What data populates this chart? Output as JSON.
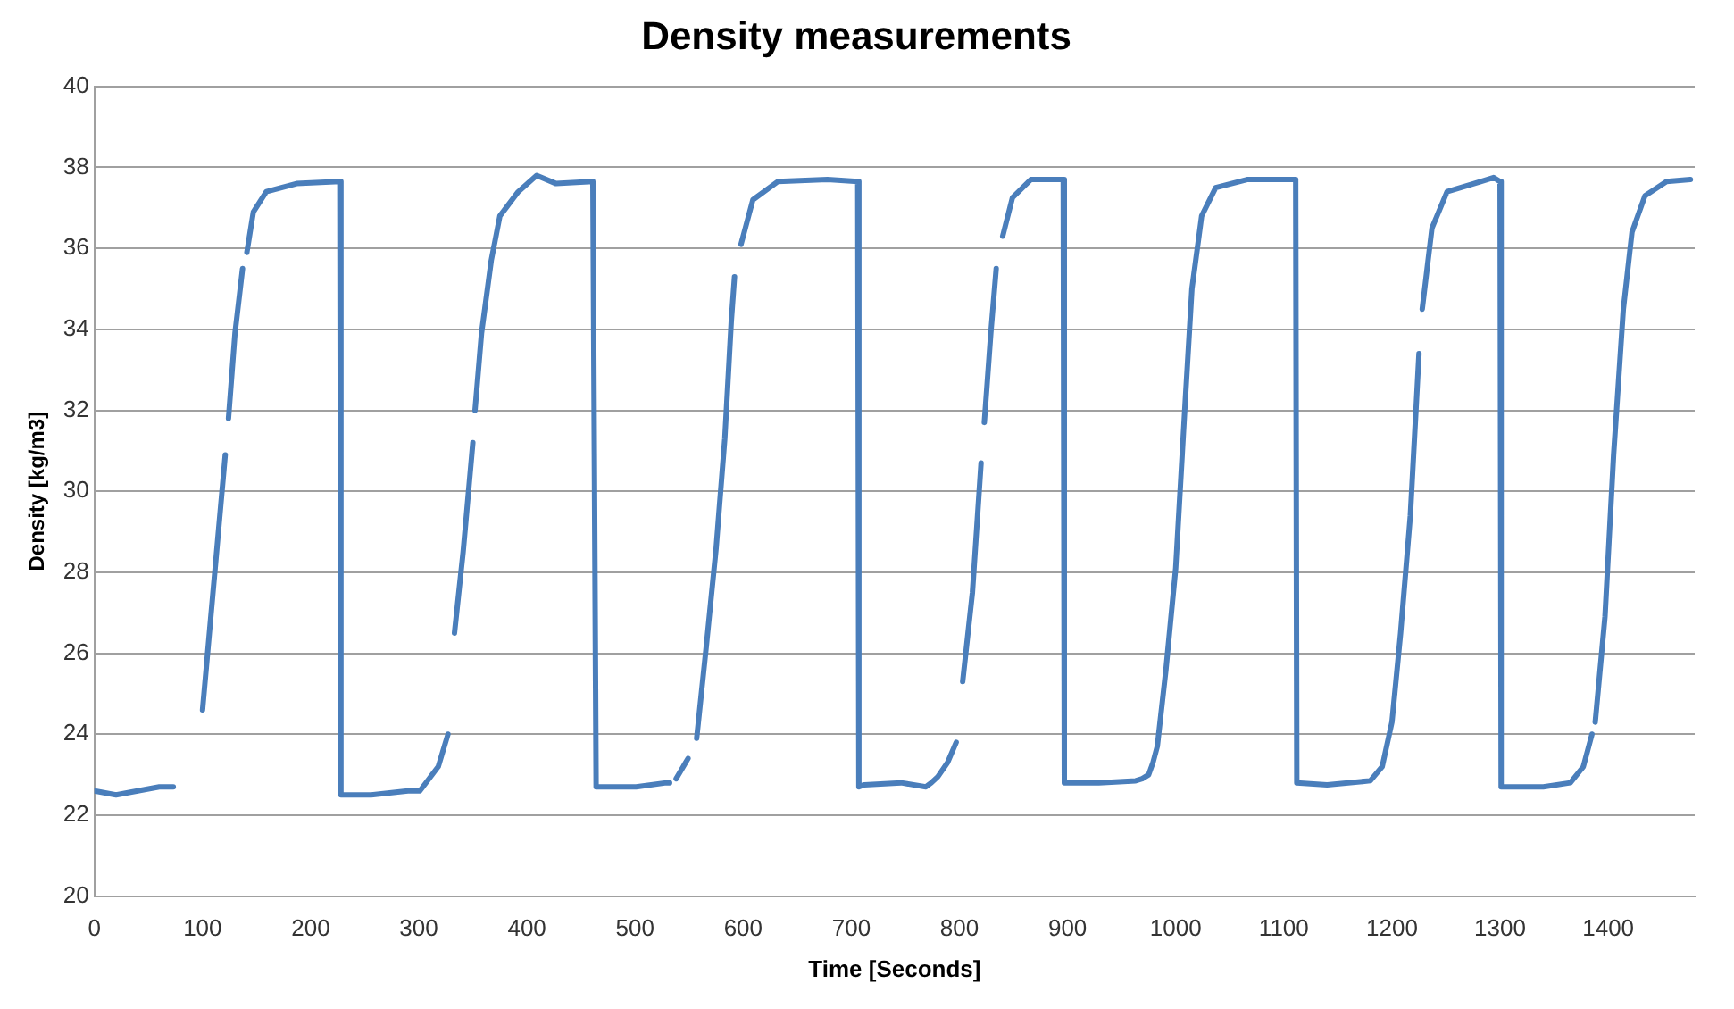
{
  "chart_data": {
    "type": "line",
    "title": "Density measurements",
    "xlabel": "Time [Seconds]",
    "ylabel": "Density [kg/m3]",
    "x": [
      0,
      20,
      40,
      60,
      73,
      85,
      100,
      121,
      122,
      124,
      130,
      137,
      139,
      141,
      147,
      159,
      187,
      227,
      228,
      256,
      290,
      301,
      318,
      327,
      329,
      333,
      341,
      350,
      351,
      352,
      358,
      367,
      375,
      392,
      409,
      427,
      461,
      464,
      501,
      529,
      532,
      535,
      538,
      549,
      553,
      557,
      566,
      575,
      583,
      589,
      592,
      595,
      598,
      609,
      632,
      678,
      706,
      707,
      712,
      746,
      769,
      774,
      780,
      789,
      797,
      800,
      803,
      812,
      820,
      822,
      823,
      829,
      834,
      837,
      840,
      849,
      866,
      896,
      897,
      929,
      963,
      969,
      975,
      979,
      983,
      991,
      1000,
      1009,
      1015,
      1024,
      1037,
      1066,
      1111,
      1112,
      1140,
      1180,
      1191,
      1200,
      1208,
      1217,
      1225,
      1226,
      1228,
      1237,
      1251,
      1282,
      1294,
      1300,
      1301,
      1340,
      1365,
      1377,
      1385,
      1386,
      1388,
      1397,
      1405,
      1414,
      1422,
      1434,
      1454,
      1476
    ],
    "values": [
      22.6,
      22.5,
      22.6,
      22.7,
      22.7,
      null,
      24.6,
      30.9,
      null,
      31.8,
      33.9,
      35.5,
      null,
      35.9,
      36.9,
      37.4,
      37.6,
      37.65,
      22.5,
      22.5,
      22.6,
      22.6,
      23.2,
      24.0,
      null,
      26.5,
      28.5,
      31.2,
      null,
      32.0,
      33.9,
      35.7,
      36.8,
      37.4,
      37.8,
      37.6,
      37.65,
      22.7,
      22.7,
      22.8,
      22.8,
      null,
      22.9,
      23.4,
      null,
      23.9,
      26.2,
      28.6,
      31.3,
      34.2,
      35.3,
      null,
      36.1,
      37.2,
      37.65,
      37.7,
      37.65,
      22.7,
      22.75,
      22.8,
      22.7,
      22.8,
      22.95,
      23.3,
      23.8,
      null,
      25.3,
      27.5,
      30.7,
      null,
      31.7,
      33.9,
      35.5,
      null,
      36.3,
      37.25,
      37.7,
      37.7,
      22.8,
      22.8,
      22.85,
      22.9,
      23.0,
      23.3,
      23.7,
      25.6,
      28.1,
      32.3,
      35.0,
      36.8,
      37.5,
      37.7,
      37.7,
      22.8,
      22.75,
      22.85,
      23.2,
      24.3,
      26.5,
      29.4,
      33.4,
      null,
      34.5,
      36.5,
      37.4,
      37.65,
      37.75,
      37.65,
      22.7,
      22.7,
      22.8,
      23.2,
      24.0,
      null,
      24.3,
      26.9,
      30.9,
      34.5,
      36.4,
      37.3,
      37.65,
      37.7
    ],
    "color": "#4a7ebb",
    "xlim": [
      0,
      1480
    ],
    "xticks": [
      0,
      100,
      200,
      300,
      400,
      500,
      600,
      700,
      800,
      900,
      1000,
      1100,
      1200,
      1300,
      1400
    ],
    "ylim": [
      20,
      40
    ],
    "yticks": [
      20,
      22,
      24,
      26,
      28,
      30,
      32,
      34,
      36,
      38,
      40
    ],
    "grid": "y",
    "marker": "none",
    "line_style": "solid"
  }
}
